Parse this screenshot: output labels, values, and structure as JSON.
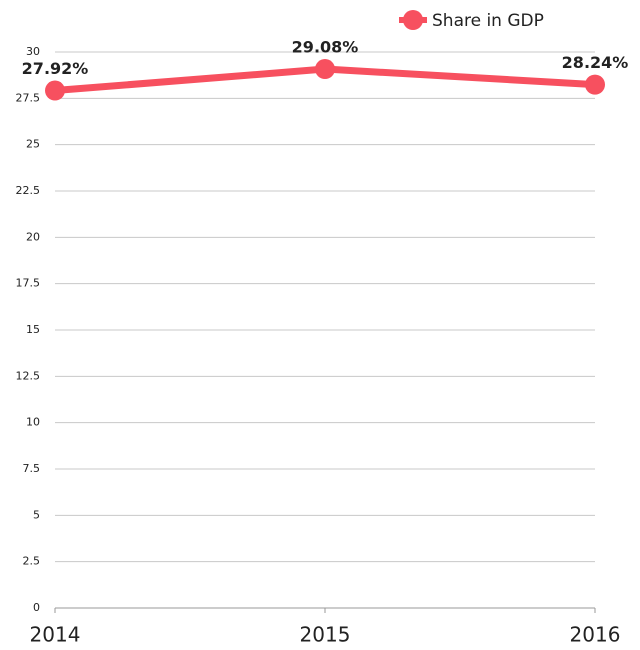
{
  "chart_data": {
    "type": "line",
    "categories": [
      "2014",
      "2015",
      "2016"
    ],
    "series": [
      {
        "name": "Share in GDP",
        "color": "#f7505f",
        "values": [
          27.92,
          29.08,
          28.24
        ],
        "value_labels": [
          "27.92%",
          "29.08%",
          "28.24%"
        ]
      }
    ],
    "ylim": [
      0,
      30
    ],
    "yticks": [
      0,
      2.5,
      5,
      7.5,
      10,
      12.5,
      15,
      17.5,
      20,
      22.5,
      25,
      27.5,
      30
    ],
    "grid": true
  }
}
